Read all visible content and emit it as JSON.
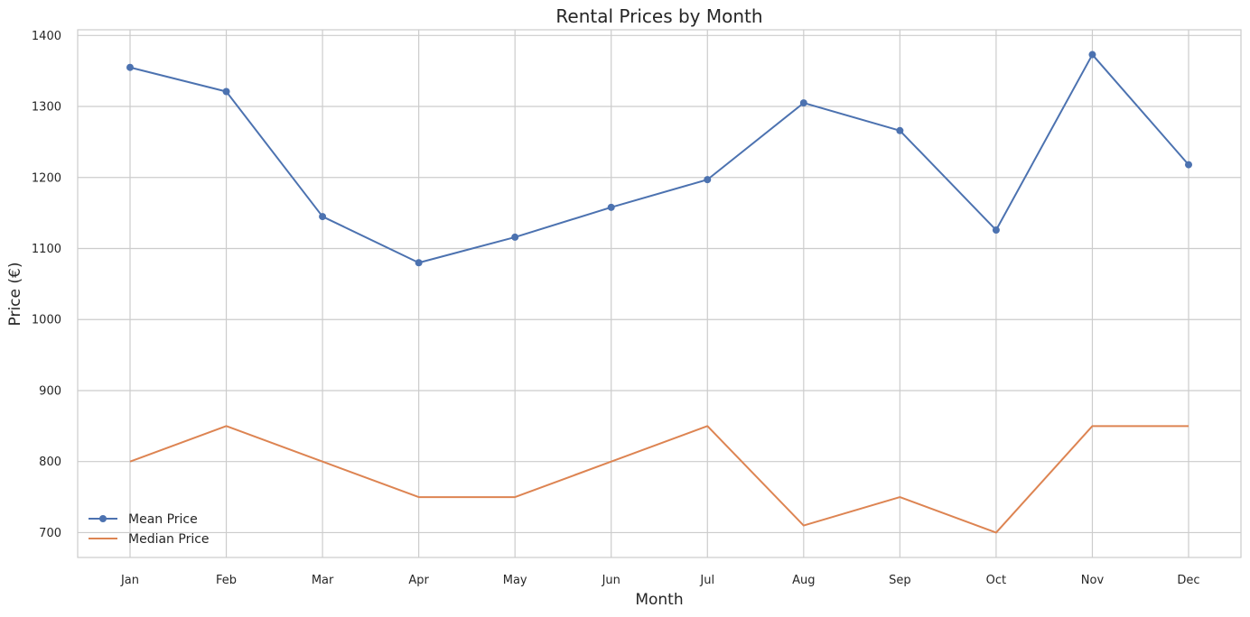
{
  "chart_data": {
    "type": "line",
    "title": "Rental Prices by Month",
    "xlabel": "Month",
    "ylabel": "Price (€)",
    "categories": [
      "Jan",
      "Feb",
      "Mar",
      "Apr",
      "May",
      "Jun",
      "Jul",
      "Aug",
      "Sep",
      "Oct",
      "Nov",
      "Dec"
    ],
    "ylim": [
      665,
      1408
    ],
    "yticks": [
      700,
      800,
      900,
      1000,
      1100,
      1200,
      1300,
      1400
    ],
    "grid": true,
    "legend_position": "lower-left",
    "series": [
      {
        "name": "Mean Price",
        "color": "#4c72b0",
        "marker": "circle",
        "values": [
          1355,
          1321,
          1145,
          1080,
          1116,
          1158,
          1197,
          1305,
          1266,
          1126,
          1373,
          1218
        ]
      },
      {
        "name": "Median Price",
        "color": "#dd8452",
        "marker": "none",
        "values": [
          800,
          850,
          800,
          750,
          750,
          800,
          850,
          710,
          750,
          700,
          850,
          850
        ]
      }
    ]
  }
}
